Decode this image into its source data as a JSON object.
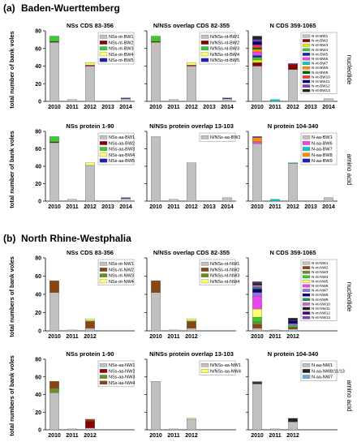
{
  "sections": [
    {
      "label": "(a)",
      "title": "Baden-Wuerttemberg",
      "rows": [
        {
          "side_label": "nucleotide",
          "ylabel": "total number of bank voles"
        },
        {
          "side_label": "amino acid",
          "ylabel": "total number of bank voles"
        }
      ]
    },
    {
      "label": "(b)",
      "title": "North Rhine-Westphalia",
      "rows": [
        {
          "side_label": "nucleotide",
          "ylabel": "total numbers of bank voles"
        },
        {
          "side_label": "amino acid",
          "ylabel": "total numbers of bank voles"
        }
      ]
    }
  ],
  "chart_data": [
    {
      "type": "bar",
      "stacked": true,
      "title": "NSs CDS 83-356",
      "categories": [
        "2010",
        "2011",
        "2012",
        "2013",
        "2014"
      ],
      "ylim": [
        0,
        80
      ],
      "yticks": [
        0,
        20,
        40,
        60,
        80
      ],
      "show_yticks": true,
      "legend_position": "top-right",
      "series": [
        {
          "name": "NSs-nt-BW1",
          "color": "#c0c0c0",
          "values": [
            67,
            2,
            40,
            0,
            3
          ]
        },
        {
          "name": "NSs-nt-BW2",
          "color": "#8b0000",
          "values": [
            1,
            0,
            1,
            0,
            0
          ]
        },
        {
          "name": "NSs-nt-BW3",
          "color": "#33cc33",
          "values": [
            6,
            0,
            0,
            0,
            0
          ]
        },
        {
          "name": "NSs-nt-BW4",
          "color": "#ffff66",
          "values": [
            0,
            0,
            3,
            0,
            0
          ]
        },
        {
          "name": "NSs-nt-BW5",
          "color": "#1f1fb4",
          "values": [
            0,
            0,
            0,
            0,
            1
          ]
        }
      ]
    },
    {
      "type": "bar",
      "stacked": true,
      "title": "N/NSs overlap CDS 82-355",
      "categories": [
        "2010",
        "2011",
        "2012",
        "2013",
        "2014"
      ],
      "ylim": [
        0,
        80
      ],
      "yticks": [
        0,
        20,
        40,
        60,
        80
      ],
      "show_yticks": false,
      "legend_position": "top-right",
      "series": [
        {
          "name": "N/NSs-nt-BW1",
          "color": "#c0c0c0",
          "values": [
            67,
            2,
            40,
            0,
            3
          ]
        },
        {
          "name": "N/NSs-nt-BW2",
          "color": "#8b0000",
          "values": [
            1,
            0,
            1,
            0,
            0
          ]
        },
        {
          "name": "N/NSs-nt-BW3",
          "color": "#33cc33",
          "values": [
            6,
            0,
            0,
            0,
            0
          ]
        },
        {
          "name": "N/NSs-nt-BW4",
          "color": "#ffff66",
          "values": [
            0,
            0,
            3,
            0,
            0
          ]
        },
        {
          "name": "N/NSs-nt-BW5",
          "color": "#1f1fb4",
          "values": [
            0,
            0,
            0,
            0,
            1
          ]
        }
      ]
    },
    {
      "type": "bar",
      "stacked": true,
      "title": "N CDS 359-1065",
      "categories": [
        "2010",
        "2011",
        "2012",
        "2013",
        "2014"
      ],
      "ylim": [
        0,
        80
      ],
      "yticks": [
        0,
        20,
        40,
        60,
        80
      ],
      "show_yticks": false,
      "legend_position": "top-right",
      "series": [
        {
          "name": "N-nt-BW1",
          "color": "#c0c0c0",
          "values": [
            40,
            0,
            36,
            0,
            3
          ]
        },
        {
          "name": "N-nt-BW2",
          "color": "#8b0000",
          "values": [
            4,
            0,
            6,
            0,
            0
          ]
        },
        {
          "name": "N-nt-BW3",
          "color": "#e8e800",
          "values": [
            3,
            0,
            0,
            0,
            0
          ]
        },
        {
          "name": "N-nt-BW4",
          "color": "#33cc33",
          "values": [
            3,
            0,
            0,
            0,
            0
          ]
        },
        {
          "name": "N-nt-BW5",
          "color": "#1f1fb4",
          "values": [
            2,
            0,
            0,
            0,
            0
          ]
        },
        {
          "name": "N-nt-BW6",
          "color": "#ee44ee",
          "values": [
            4,
            0,
            0,
            0,
            0
          ]
        },
        {
          "name": "N-nt-BW7",
          "color": "#00cccc",
          "values": [
            0,
            2,
            0,
            0,
            0
          ]
        },
        {
          "name": "N-nt-BW8",
          "color": "#ff8c00",
          "values": [
            3,
            0,
            0,
            0,
            0
          ]
        },
        {
          "name": "N-nt-BW9",
          "color": "#006400",
          "values": [
            2,
            0,
            0,
            0,
            0
          ]
        },
        {
          "name": "N-nt-BW10",
          "color": "#ff3333",
          "values": [
            3,
            0,
            0,
            0,
            0
          ]
        },
        {
          "name": "N-nt-BW11",
          "color": "#000080",
          "values": [
            4,
            0,
            0,
            0,
            0
          ]
        },
        {
          "name": "N-nt-BW12",
          "color": "#7a3fbf",
          "values": [
            2,
            0,
            1,
            0,
            0
          ]
        },
        {
          "name": "N-nt-BW13",
          "color": "#222222",
          "values": [
            4,
            0,
            0,
            0,
            0
          ]
        }
      ]
    },
    {
      "type": "bar",
      "stacked": true,
      "title": "NSs protein 1-90",
      "categories": [
        "2010",
        "2011",
        "2012",
        "2013",
        "2014"
      ],
      "ylim": [
        0,
        80
      ],
      "yticks": [
        0,
        20,
        40,
        60,
        80
      ],
      "show_yticks": true,
      "legend_position": "top-right",
      "series": [
        {
          "name": "NSs-aa-BW1",
          "color": "#c0c0c0",
          "values": [
            67,
            2,
            41,
            0,
            3
          ]
        },
        {
          "name": "NSs-aa-BW2",
          "color": "#8b0000",
          "values": [
            1,
            0,
            0,
            0,
            0
          ]
        },
        {
          "name": "NSs-aa-BW3",
          "color": "#33cc33",
          "values": [
            6,
            0,
            0,
            0,
            0
          ]
        },
        {
          "name": "NSs-aa-BW4",
          "color": "#ffff66",
          "values": [
            0,
            0,
            3,
            0,
            0
          ]
        },
        {
          "name": "NSs-aa-BW5",
          "color": "#1f1fb4",
          "values": [
            0,
            0,
            0,
            0,
            1
          ]
        }
      ]
    },
    {
      "type": "bar",
      "stacked": true,
      "title": "N/NSs protein overlap 13-103",
      "categories": [
        "2010",
        "2011",
        "2012",
        "2013",
        "2014"
      ],
      "ylim": [
        0,
        80
      ],
      "yticks": [
        0,
        20,
        40,
        60,
        80
      ],
      "show_yticks": false,
      "legend_position": "top-right",
      "series": [
        {
          "name": "N/NSs-aa-BW1",
          "color": "#c0c0c0",
          "values": [
            74,
            2,
            44,
            0,
            4
          ]
        }
      ]
    },
    {
      "type": "bar",
      "stacked": true,
      "title": "N protein 104-340",
      "categories": [
        "2010",
        "2011",
        "2012",
        "2013",
        "2014"
      ],
      "ylim": [
        0,
        80
      ],
      "yticks": [
        0,
        20,
        40,
        60,
        80
      ],
      "show_yticks": false,
      "legend_position": "top-right",
      "series": [
        {
          "name": "N-aa-BW1",
          "color": "#c0c0c0",
          "values": [
            66,
            0,
            43,
            0,
            4
          ]
        },
        {
          "name": "N-aa-BW6",
          "color": "#ee44ee",
          "values": [
            2,
            0,
            0,
            0,
            0
          ]
        },
        {
          "name": "N-aa-BW7",
          "color": "#00cccc",
          "values": [
            0,
            2,
            1,
            0,
            0
          ]
        },
        {
          "name": "N-aa-BW8",
          "color": "#ff8c00",
          "values": [
            5,
            0,
            0,
            0,
            0
          ]
        },
        {
          "name": "N-aa-BW9",
          "color": "#1f1fb4",
          "values": [
            1,
            0,
            0,
            0,
            0
          ]
        }
      ]
    },
    {
      "type": "bar",
      "stacked": true,
      "title": "NSs CDS 83-356",
      "categories": [
        "2010",
        "2011",
        "2012"
      ],
      "ylim": [
        0,
        80
      ],
      "yticks": [
        0,
        20,
        40,
        60,
        80
      ],
      "show_yticks": true,
      "legend_position": "top-right",
      "series": [
        {
          "name": "NSs-nt-NW1",
          "color": "#c0c0c0",
          "values": [
            42,
            1,
            3
          ]
        },
        {
          "name": "NSs-nt-NW2",
          "color": "#8b4513",
          "values": [
            13,
            0,
            7
          ]
        },
        {
          "name": "NSs-nt-NW3",
          "color": "#6b8e23",
          "values": [
            0,
            0,
            1
          ]
        },
        {
          "name": "NSs-nt-NW4",
          "color": "#ffff66",
          "values": [
            0,
            0,
            2
          ]
        }
      ]
    },
    {
      "type": "bar",
      "stacked": true,
      "title": "N/NSs overlap CDS 82-355",
      "categories": [
        "2010",
        "2011",
        "2012"
      ],
      "ylim": [
        0,
        80
      ],
      "yticks": [
        0,
        20,
        40,
        60,
        80
      ],
      "show_yticks": false,
      "legend_position": "top-right",
      "series": [
        {
          "name": "N/NSs-nt-NW1",
          "color": "#c0c0c0",
          "values": [
            42,
            1,
            3
          ]
        },
        {
          "name": "N/NSs-nt-NW2",
          "color": "#8b4513",
          "values": [
            13,
            0,
            7
          ]
        },
        {
          "name": "N/NSs-nt-NW3",
          "color": "#6b8e23",
          "values": [
            0,
            0,
            1
          ]
        },
        {
          "name": "N/NSs-nt-NW4",
          "color": "#ffff66",
          "values": [
            0,
            0,
            2
          ]
        }
      ]
    },
    {
      "type": "bar",
      "stacked": true,
      "title": "N CDS 359-1065",
      "categories": [
        "2010",
        "2011",
        "2012"
      ],
      "ylim": [
        0,
        80
      ],
      "yticks": [
        0,
        20,
        40,
        60,
        80
      ],
      "show_yticks": false,
      "legend_position": "top-right",
      "series": [
        {
          "name": "N-nt-NW1",
          "color": "#c0c0c0",
          "values": [
            3,
            1,
            2
          ]
        },
        {
          "name": "N-nt-NW2",
          "color": "#8b4513",
          "values": [
            4,
            0,
            2
          ]
        },
        {
          "name": "N-nt-NW3",
          "color": "#6b8e23",
          "values": [
            3,
            0,
            0
          ]
        },
        {
          "name": "N-nt-NW4",
          "color": "#33cc33",
          "values": [
            5,
            0,
            2
          ]
        },
        {
          "name": "N-nt-NW5",
          "color": "#ffff66",
          "values": [
            9,
            0,
            0
          ]
        },
        {
          "name": "N-nt-NW6",
          "color": "#ee44ee",
          "values": [
            14,
            0,
            0
          ]
        },
        {
          "name": "N-nt-NW7",
          "color": "#9370db",
          "values": [
            4,
            0,
            2
          ]
        },
        {
          "name": "N-nt-NW8",
          "color": "#000080",
          "values": [
            4,
            0,
            3
          ]
        },
        {
          "name": "N-nt-NW9",
          "color": "#2e8b57",
          "values": [
            2,
            0,
            0
          ]
        },
        {
          "name": "N-nt-NW10",
          "color": "#cc66cc",
          "values": [
            2,
            0,
            0
          ]
        },
        {
          "name": "N-nt-NW11",
          "color": "#222222",
          "values": [
            2,
            0,
            3
          ]
        },
        {
          "name": "N-nt-NW12",
          "color": "#4b0082",
          "values": [
            1,
            0,
            0
          ]
        },
        {
          "name": "N-nt-NW13",
          "color": "#7a3fbf",
          "values": [
            1,
            0,
            0
          ]
        }
      ]
    },
    {
      "type": "bar",
      "stacked": true,
      "title": "NSs protein 1-90",
      "categories": [
        "2010",
        "2011",
        "2012"
      ],
      "ylim": [
        0,
        80
      ],
      "yticks": [
        0,
        20,
        40,
        60,
        80
      ],
      "show_yticks": true,
      "legend_position": "top-right",
      "series": [
        {
          "name": "NSs-aa-NW1",
          "color": "#c0c0c0",
          "values": [
            42,
            1,
            2
          ]
        },
        {
          "name": "NSs-aa-NW2",
          "color": "#8b0000",
          "values": [
            0,
            0,
            8
          ]
        },
        {
          "name": "NSs-aa-NW3",
          "color": "#6b8e23",
          "values": [
            5,
            0,
            0
          ]
        },
        {
          "name": "NSs-aa-NW4",
          "color": "#8b4513",
          "values": [
            8,
            0,
            2
          ]
        }
      ]
    },
    {
      "type": "bar",
      "stacked": true,
      "title": "N/NSs protein overlap 13-103",
      "categories": [
        "2010",
        "2011",
        "2012"
      ],
      "ylim": [
        0,
        80
      ],
      "yticks": [
        0,
        20,
        40,
        60,
        80
      ],
      "show_yticks": false,
      "legend_position": "top-right",
      "series": [
        {
          "name": "N/NSs-aa-NW1",
          "color": "#c0c0c0",
          "values": [
            55,
            1,
            12
          ]
        },
        {
          "name": "N/NSs-aa-NW4",
          "color": "#ffff66",
          "values": [
            0,
            0,
            1
          ]
        }
      ]
    },
    {
      "type": "bar",
      "stacked": true,
      "title": "N protein 104-340",
      "categories": [
        "2010",
        "2011",
        "2012"
      ],
      "ylim": [
        0,
        80
      ],
      "yticks": [
        0,
        20,
        40,
        60,
        80
      ],
      "show_yticks": false,
      "legend_position": "top-right",
      "series": [
        {
          "name": "N-aa-NW1",
          "color": "#c0c0c0",
          "values": [
            52,
            1,
            9
          ]
        },
        {
          "name": "N-aa-NW8/11/13",
          "color": "#222222",
          "values": [
            2,
            0,
            4
          ]
        },
        {
          "name": "N-aa-NW7",
          "color": "#6fa8dc",
          "values": [
            1,
            0,
            0
          ]
        }
      ]
    }
  ]
}
